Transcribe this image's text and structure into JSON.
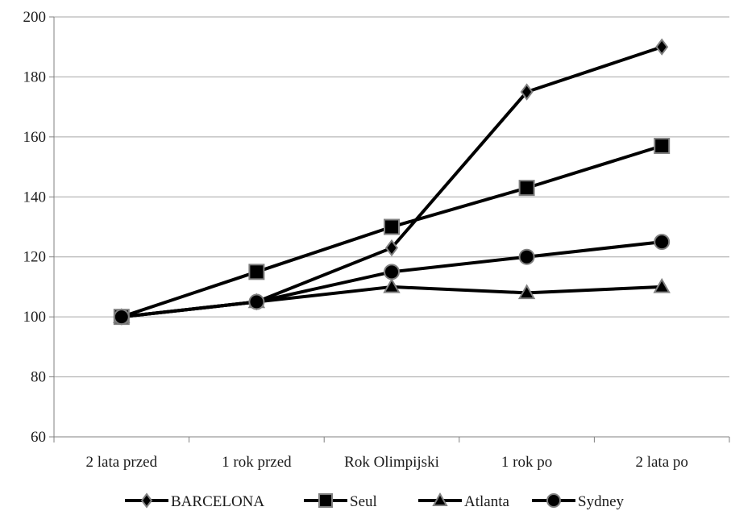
{
  "chart_data": {
    "type": "line",
    "categories": [
      "2 lata przed",
      "1 rok przed",
      "Rok Olimpijski",
      "1 rok po",
      "2 lata po"
    ],
    "series": [
      {
        "name": "BARCELONA",
        "marker": "diamond",
        "values": [
          100,
          105,
          123,
          175,
          190
        ]
      },
      {
        "name": "Seul",
        "marker": "square",
        "values": [
          100,
          115,
          130,
          143,
          157
        ]
      },
      {
        "name": "Atlanta",
        "marker": "triangle",
        "values": [
          100,
          105,
          110,
          108,
          110
        ]
      },
      {
        "name": "Sydney",
        "marker": "circle",
        "values": [
          100,
          105,
          115,
          120,
          125
        ]
      }
    ],
    "y_ticks": [
      "60",
      "80",
      "100",
      "120",
      "140",
      "160",
      "180",
      "200"
    ],
    "ylim": [
      60,
      200
    ],
    "grid": "horizontal",
    "legend_position": "bottom",
    "line_color": "#000000",
    "marker_stroke_color": "#808080",
    "grid_color": "#a6a6a6"
  }
}
